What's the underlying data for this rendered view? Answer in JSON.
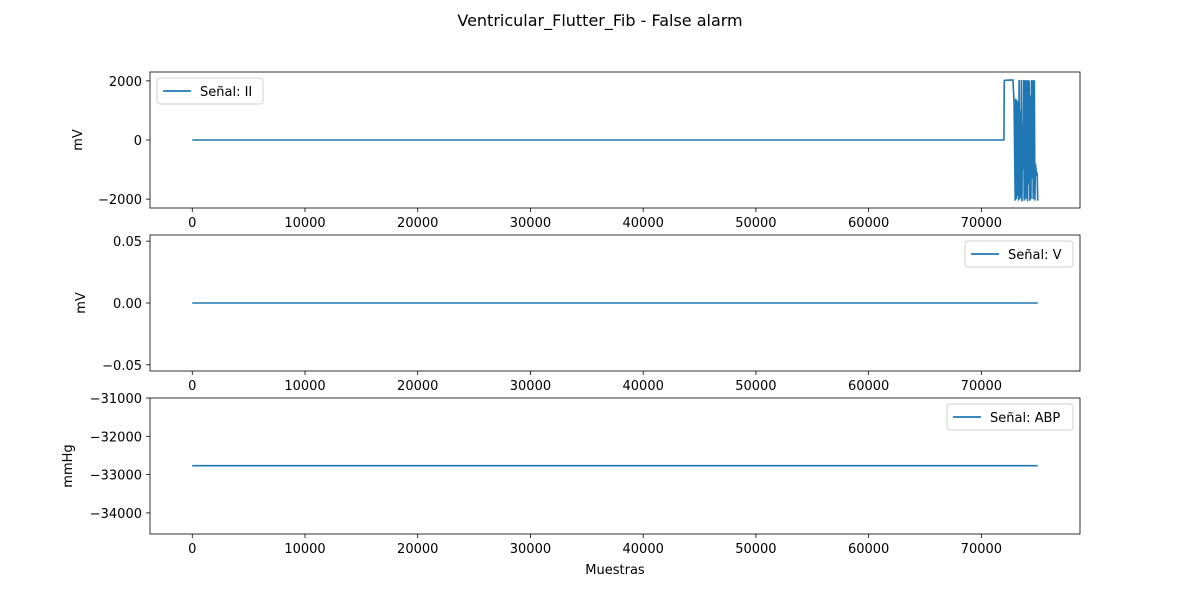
{
  "figure": {
    "title": "Ventricular_Flutter_Fib - False alarm"
  },
  "chart_data": [
    {
      "type": "line",
      "title": "",
      "xlabel": "",
      "ylabel": "mV",
      "xlim": [
        -3750,
        78750
      ],
      "ylim": [
        -2300,
        2300
      ],
      "x_ticks": [
        0,
        10000,
        20000,
        30000,
        40000,
        50000,
        60000,
        70000
      ],
      "x_tick_labels": [
        "0",
        "10000",
        "20000",
        "30000",
        "40000",
        "50000",
        "60000",
        "70000"
      ],
      "y_ticks": [
        2000,
        0,
        -2000
      ],
      "y_tick_labels": [
        "2000",
        "0",
        "−2000"
      ],
      "legend_position": "upper left",
      "grid": false,
      "color": "#1f77b4",
      "series": [
        {
          "name": "Señal: II",
          "x": [
            0,
            72000,
            72030,
            72100,
            72800,
            72900,
            73000,
            73050,
            73100,
            73150,
            73200,
            73250,
            73300,
            73350,
            73400,
            73450,
            73500,
            73550,
            73600,
            73650,
            73700,
            73750,
            73800,
            73850,
            73900,
            73950,
            74000,
            74050,
            74100,
            74150,
            74200,
            74250,
            74300,
            74350,
            74400,
            74450,
            74500,
            74550,
            74600,
            74650,
            74700,
            74750,
            74800,
            74850,
            74900,
            74950,
            75000
          ],
          "y": [
            0,
            0,
            2000,
            2020,
            2030,
            1300,
            -2050,
            1400,
            -2000,
            1350,
            -1900,
            1300,
            -2050,
            2030,
            -2000,
            1000,
            -1950,
            2030,
            -2080,
            500,
            -1000,
            2030,
            -2050,
            1200,
            2030,
            -2000,
            900,
            2020,
            -2080,
            2030,
            -1500,
            2000,
            -2050,
            1500,
            -2000,
            2030,
            -1300,
            2020,
            -2000,
            800,
            2030,
            -2050,
            -800,
            -1000,
            -1200,
            -1100,
            -2050
          ]
        }
      ]
    },
    {
      "type": "line",
      "title": "",
      "xlabel": "",
      "ylabel": "mV",
      "xlim": [
        -3750,
        78750
      ],
      "ylim": [
        -0.055,
        0.055
      ],
      "x_ticks": [
        0,
        10000,
        20000,
        30000,
        40000,
        50000,
        60000,
        70000
      ],
      "x_tick_labels": [
        "0",
        "10000",
        "20000",
        "30000",
        "40000",
        "50000",
        "60000",
        "70000"
      ],
      "y_ticks": [
        0.05,
        0.0,
        -0.05
      ],
      "y_tick_labels": [
        "0.05",
        "0.00",
        "−0.05"
      ],
      "legend_position": "upper right",
      "grid": false,
      "color": "#1f77b4",
      "series": [
        {
          "name": "Señal: V",
          "x": [
            0,
            75000
          ],
          "y": [
            0,
            0
          ]
        }
      ]
    },
    {
      "type": "line",
      "title": "",
      "xlabel": "Muestras",
      "ylabel": "mmHg",
      "xlim": [
        -3750,
        78750
      ],
      "ylim": [
        -34550,
        -31000
      ],
      "x_ticks": [
        0,
        10000,
        20000,
        30000,
        40000,
        50000,
        60000,
        70000
      ],
      "x_tick_labels": [
        "0",
        "10000",
        "20000",
        "30000",
        "40000",
        "50000",
        "60000",
        "70000"
      ],
      "y_ticks": [
        -31000,
        -32000,
        -33000,
        -34000
      ],
      "y_tick_labels": [
        "−31000",
        "−32000",
        "−33000",
        "−34000"
      ],
      "legend_position": "upper right",
      "grid": false,
      "color": "#1f77b4",
      "series": [
        {
          "name": "Señal: ABP",
          "x": [
            0,
            75000
          ],
          "y": [
            -32768,
            -32768
          ]
        }
      ]
    }
  ]
}
